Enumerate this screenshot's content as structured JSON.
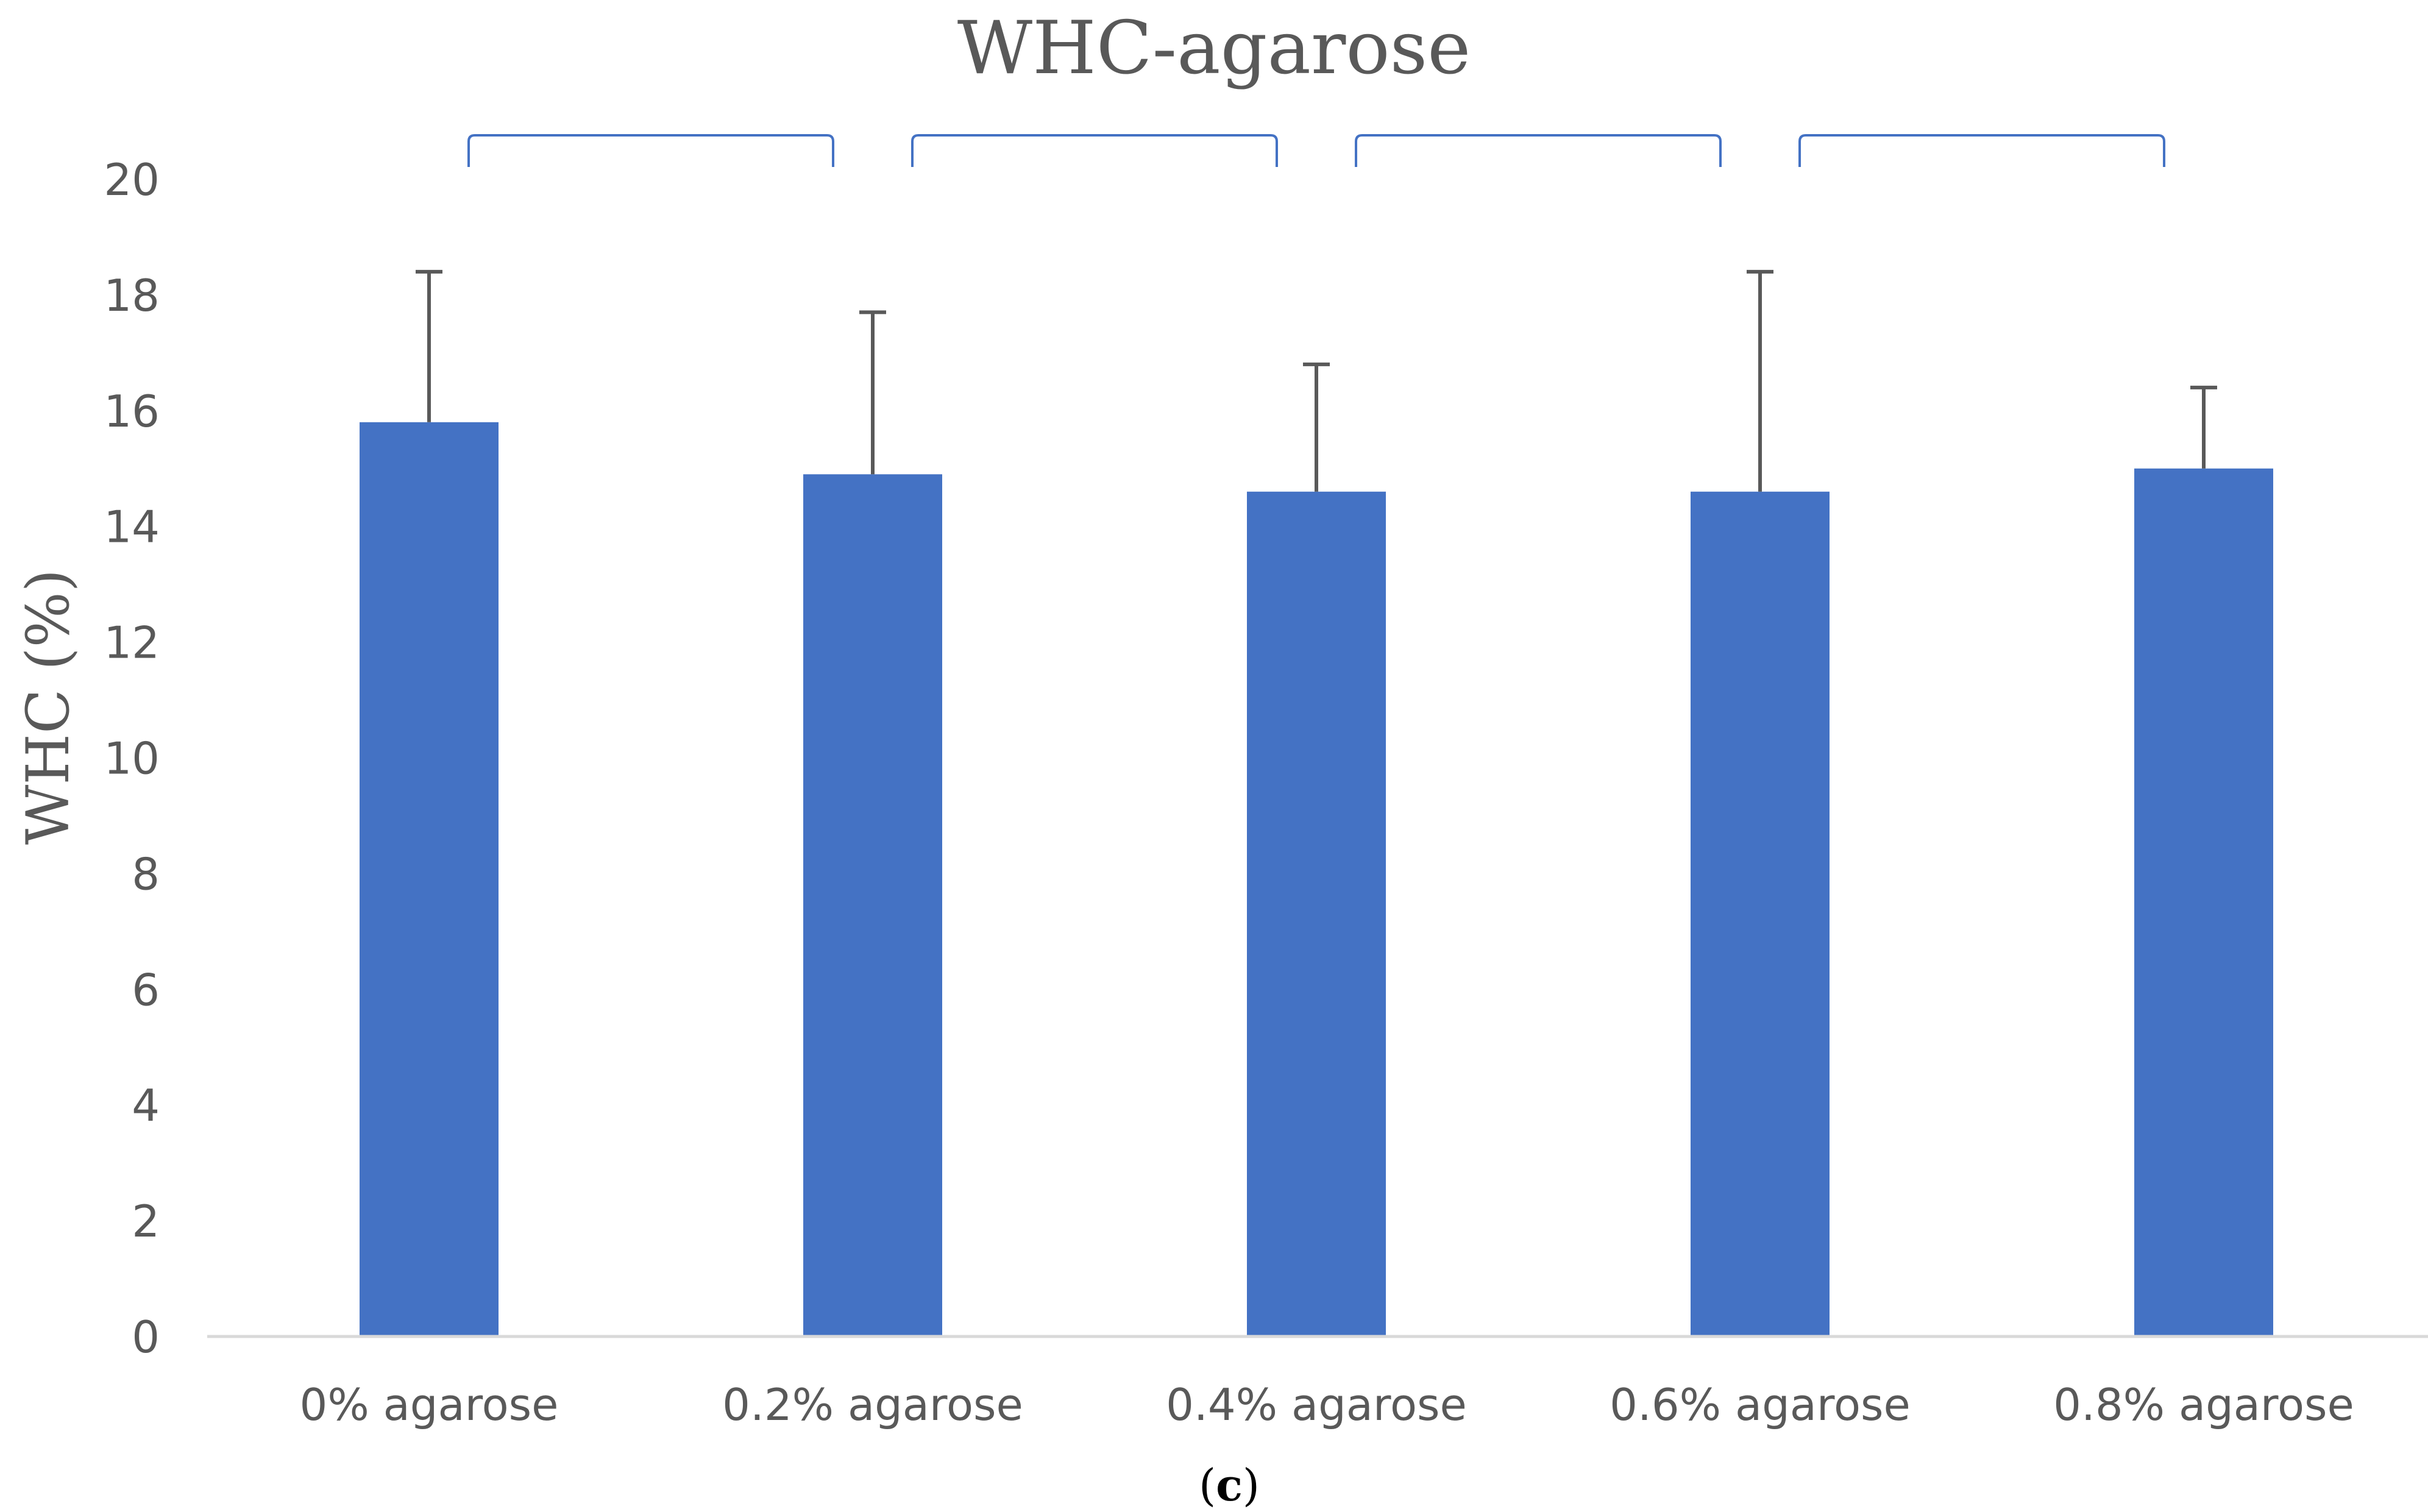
{
  "chart_data": {
    "type": "bar",
    "title": "WHC-agarose",
    "xlabel": "",
    "ylabel": "WHC (%)",
    "ylim": [
      0,
      20
    ],
    "y_ticks": [
      0,
      2,
      4,
      6,
      8,
      10,
      12,
      14,
      16,
      18,
      20
    ],
    "grid": false,
    "categories": [
      "0% agarose",
      "0.2% agarose",
      "0.4% agarose",
      "0.6% agarose",
      "0.8% agarose"
    ],
    "series": [
      {
        "name": "WHC",
        "values": [
          15.8,
          14.9,
          14.6,
          14.6,
          15.0
        ],
        "error_plus": [
          2.6,
          2.8,
          2.2,
          3.8,
          1.4
        ]
      }
    ],
    "comparison_brackets": [
      [
        0,
        1
      ],
      [
        1,
        2
      ],
      [
        2,
        3
      ],
      [
        3,
        4
      ]
    ],
    "colors": {
      "bar": "#4472C4",
      "bracket": "#4472C4",
      "error_bar": "#595959",
      "axis": "#D9D9D9",
      "text": "#595959"
    }
  },
  "caption": {
    "open": "(",
    "letter": "c",
    "close": ")"
  }
}
